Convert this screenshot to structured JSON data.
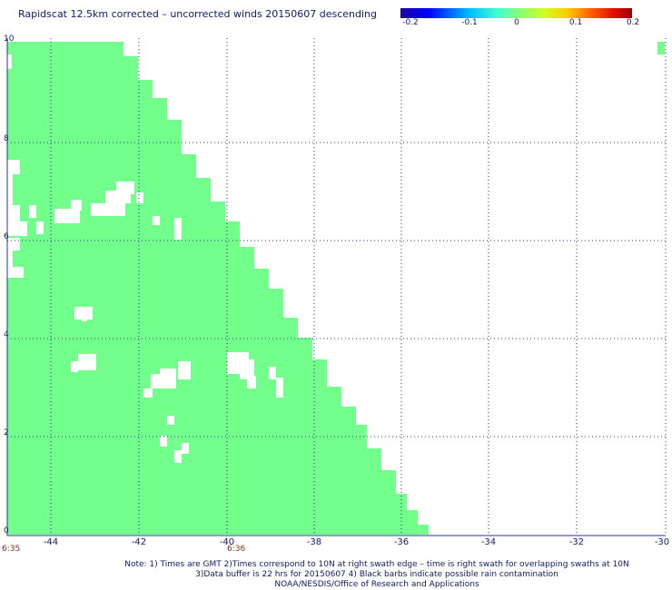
{
  "title": "Rapidscat 12.5km corrected – uncorrected winds 20150607 descending",
  "colorbar": {
    "labels": [
      "-0.2",
      "-0.1",
      "0",
      "0.1",
      "0.2"
    ],
    "colors": [
      "#1a00a0",
      "#0000ff",
      "#00c0ff",
      "#40ffd0",
      "#7fff7f",
      "#d0ff20",
      "#ffcc00",
      "#ff6000",
      "#e01000",
      "#a00000"
    ]
  },
  "map": {
    "swath_color": "#73ff8c",
    "grid_color": "#2d2da0",
    "x_ticks": [
      "-44",
      "-42",
      "-40",
      "-38",
      "-36",
      "-34",
      "-32",
      "-30"
    ],
    "y_ticks": [
      "0",
      "2",
      "4",
      "6",
      "8",
      "10"
    ],
    "time_labels": [
      "6:35",
      "6:36"
    ]
  },
  "notes": [
    "Note: 1) Times are GMT 2)Times correspond to 10N at right swath edge – time is right swath for overlapping swaths at 10N",
    "3)Data buffer is 22 hrs for 20150607 4) Black barbs indicate possible rain contamination",
    "NOAA/NESDIS/Office of Research and Applications"
  ]
}
